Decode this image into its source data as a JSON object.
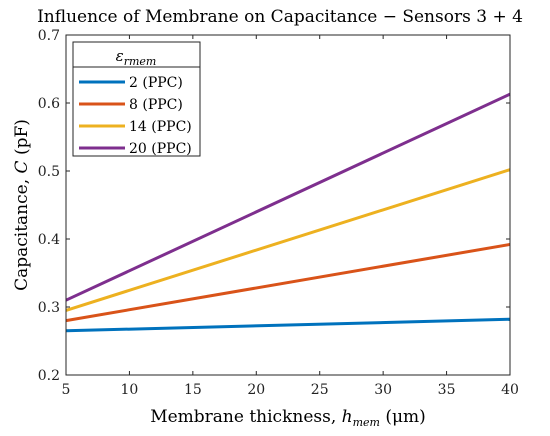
{
  "chart_data": {
    "type": "line",
    "title": "Influence of Membrane on Capacitance − Sensors 3 + 4",
    "xlabel": "Membrane thickness, h_mem (μm)",
    "ylabel": "Capacitance, C (pF)",
    "xlim": [
      5,
      40
    ],
    "ylim": [
      0.2,
      0.7
    ],
    "xticks": [
      "5",
      "10",
      "15",
      "20",
      "25",
      "30",
      "35",
      "40"
    ],
    "yticks": [
      "0.2",
      "0.3",
      "0.4",
      "0.5",
      "0.6",
      "0.7"
    ],
    "grid": false,
    "legend": {
      "title": "ε_rmem",
      "placement": "top-left",
      "entries": [
        "2 (PPC)",
        "8 (PPC)",
        "14 (PPC)",
        "20 (PPC)"
      ]
    },
    "series": [
      {
        "name": "2 (PPC)",
        "color": "#0072BD",
        "x": [
          5,
          40
        ],
        "y": [
          0.265,
          0.282
        ]
      },
      {
        "name": "8 (PPC)",
        "color": "#D95319",
        "x": [
          5,
          40
        ],
        "y": [
          0.28,
          0.392
        ]
      },
      {
        "name": "14 (PPC)",
        "color": "#EDB120",
        "x": [
          5,
          40
        ],
        "y": [
          0.295,
          0.502
        ]
      },
      {
        "name": "20 (PPC)",
        "color": "#7E2F8E",
        "x": [
          5,
          40
        ],
        "y": [
          0.31,
          0.613
        ]
      }
    ]
  }
}
